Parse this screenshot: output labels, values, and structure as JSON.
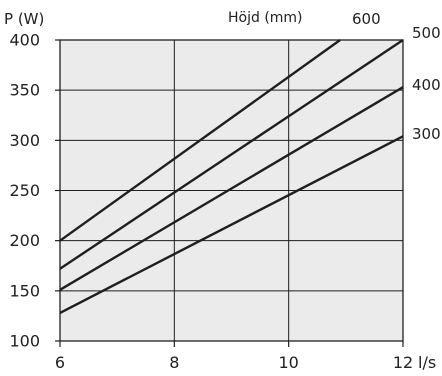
{
  "chart_data": {
    "type": "line",
    "ylabel": "P (W)",
    "xlabel": "l/s",
    "legend_title": "Höjd (mm)",
    "xlim": [
      6,
      12
    ],
    "ylim": [
      100,
      400
    ],
    "x_ticks": [
      6,
      8,
      10,
      12
    ],
    "y_ticks": [
      100,
      150,
      200,
      250,
      300,
      350,
      400
    ],
    "x_tick_labels": [
      "6",
      "8",
      "10",
      "12"
    ],
    "y_tick_labels": [
      "100",
      "150",
      "200",
      "250",
      "300",
      "350",
      "400"
    ],
    "grid": true,
    "plot_background": "#ebebeb",
    "line_color": "#1f1f1f",
    "series": [
      {
        "name": "600",
        "x": [
          6,
          10.9
        ],
        "y": [
          200,
          400
        ]
      },
      {
        "name": "500",
        "x": [
          6,
          12
        ],
        "y": [
          172,
          400
        ]
      },
      {
        "name": "400",
        "x": [
          6,
          12
        ],
        "y": [
          151,
          353
        ]
      },
      {
        "name": "300",
        "x": [
          6,
          12
        ],
        "y": [
          128,
          304
        ]
      }
    ]
  }
}
